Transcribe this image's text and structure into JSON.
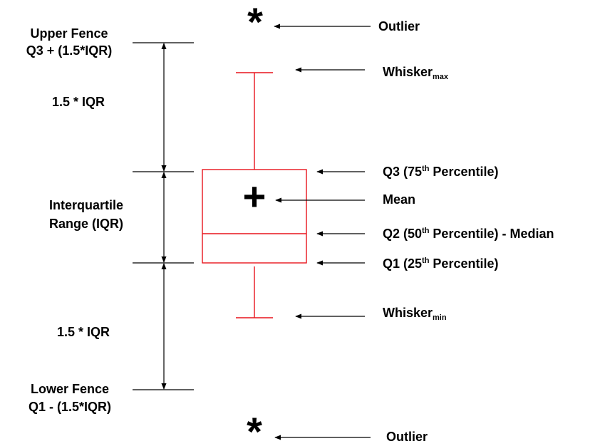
{
  "colors": {
    "box": "#e8141c",
    "ink": "#000000"
  },
  "symbols": {
    "outlier_top": "*",
    "mean_marker": "+",
    "outlier_bottom": "*"
  },
  "left_labels": {
    "upper_fence_1": "Upper Fence",
    "upper_fence_2": "Q3 + (1.5*IQR)",
    "upper_span": "1.5 * IQR",
    "iqr_1": "Interquartile",
    "iqr_2": "Range (IQR)",
    "lower_span": "1.5 * IQR",
    "lower_fence_1": "Lower Fence",
    "lower_fence_2": "Q1 - (1.5*IQR)"
  },
  "right_labels": {
    "outlier_top": "Outlier",
    "whisker_max": {
      "base": "Whisker",
      "sub": "max"
    },
    "q3": {
      "pre": "Q3 (75",
      "sup": "th",
      "post": " Percentile)"
    },
    "mean": "Mean",
    "q2": {
      "pre": "Q2 (50",
      "sup": "th",
      "post": " Percentile) - Median"
    },
    "q1": {
      "pre": "Q1 (25",
      "sup": "th",
      "post": " Percentile)"
    },
    "whisker_min": {
      "base": "Whisker",
      "sub": "min"
    },
    "outlier_bottom": "Outlier"
  }
}
